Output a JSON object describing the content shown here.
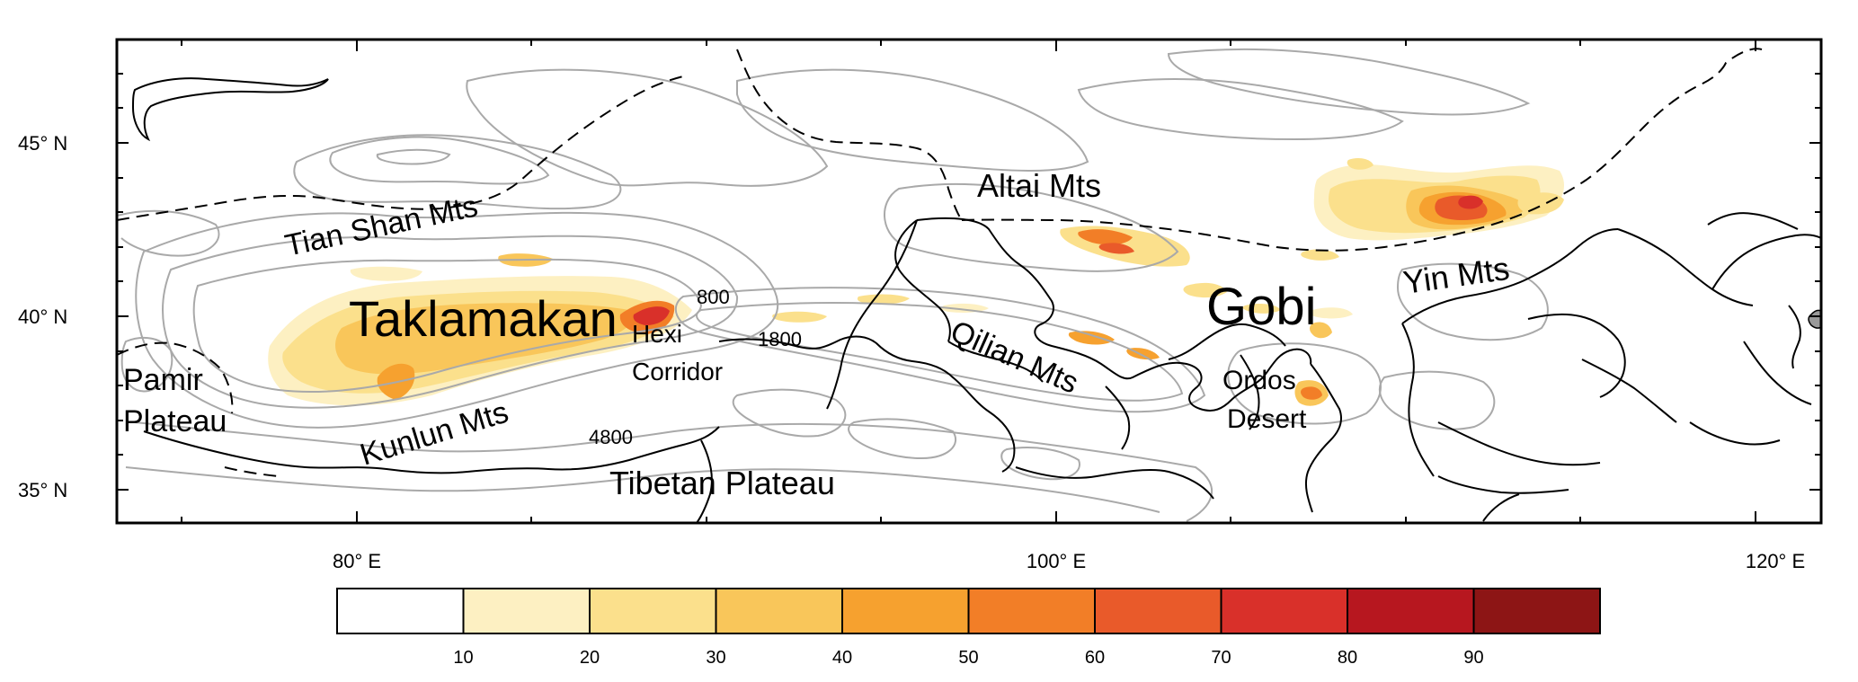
{
  "map": {
    "lat_ticks": [
      "45° N",
      "40° N",
      "35° N"
    ],
    "lon_ticks": [
      "80° E",
      "100° E",
      "120° E"
    ],
    "contour_labels": [
      "800",
      "1800",
      "4800"
    ],
    "regions": [
      "Tian Shan Mts",
      "Taklamakan",
      "Hexi",
      "Corridor",
      "Pamir",
      "Plateau",
      "Kunlun Mts",
      "Tibetan Plateau",
      "Altai Mts",
      "Qilian Mts",
      "Gobi",
      "Ordos",
      "Desert",
      "Yin Mts"
    ]
  },
  "colorbar": {
    "tick_labels": [
      "10",
      "20",
      "30",
      "40",
      "50",
      "60",
      "70",
      "80",
      "90"
    ],
    "colors": [
      "#ffffff",
      "#fdf0c2",
      "#fbe08c",
      "#f9c65a",
      "#f6a12f",
      "#f27e27",
      "#e95a2a",
      "#d9302a",
      "#b7171f",
      "#8d1515"
    ]
  },
  "colors": {
    "frame": "#000000",
    "contour": "#a9a9a9",
    "border": "#000000"
  }
}
